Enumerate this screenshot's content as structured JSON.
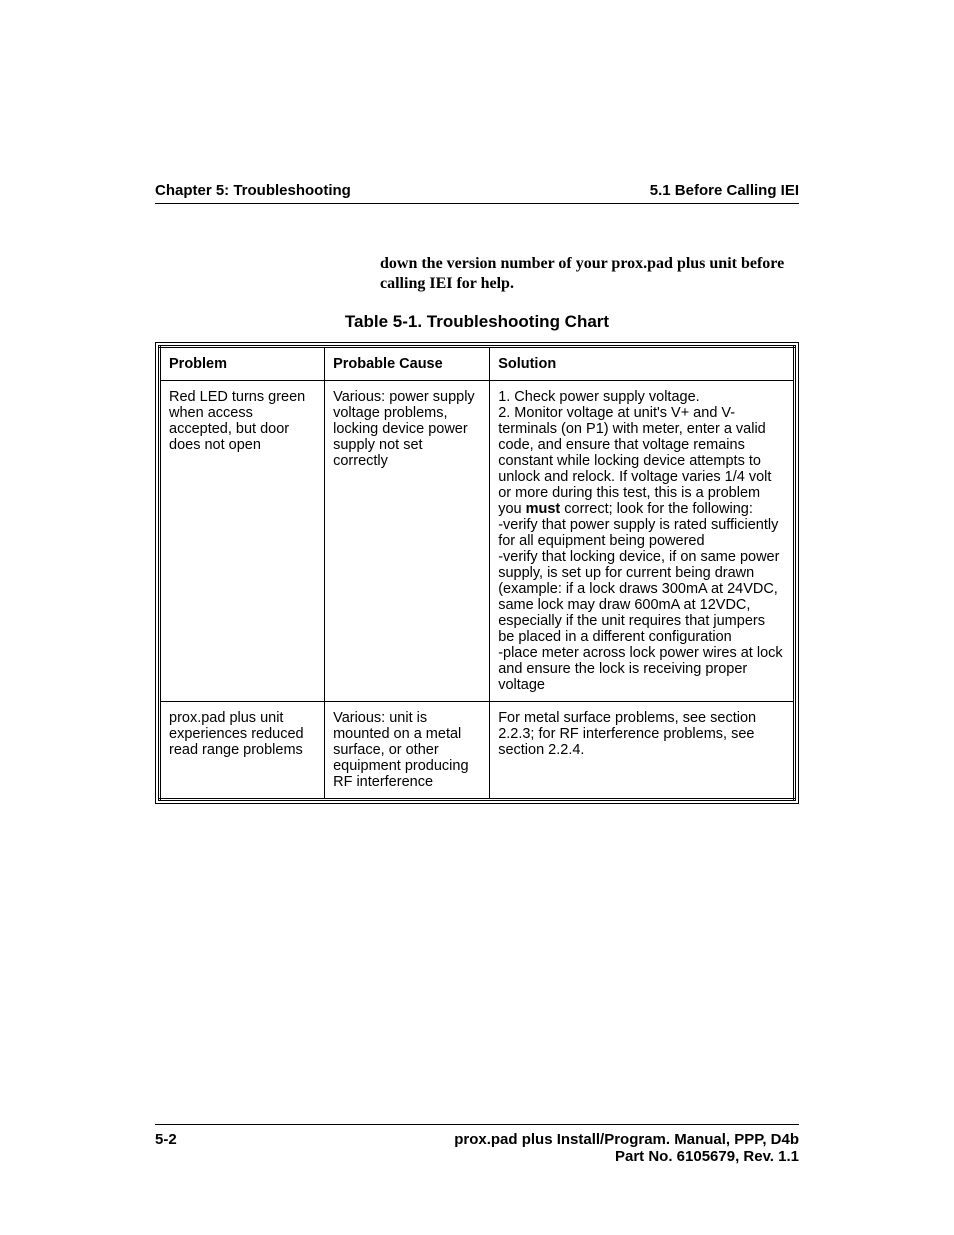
{
  "header": {
    "left": "Chapter 5: Troubleshooting",
    "right": "5.1 Before Calling IEI"
  },
  "intro": "down the version number of your prox.pad plus unit before calling IEI for help.",
  "tableCaption": "Table 5-1. Troubleshooting Chart",
  "columns": {
    "problem": "Problem",
    "cause": "Probable Cause",
    "solution": "Solution"
  },
  "rows": [
    {
      "problem": "Red LED turns green when access accepted, but door does not open",
      "cause": "Various: power supply voltage problems, locking device power supply not set correctly",
      "solution_pre": "1. Check power supply voltage.\n2. Monitor voltage at unit's V+ and V- terminals (on P1) with meter, enter a valid code, and ensure that voltage remains constant while locking device attempts to unlock and relock. If voltage varies 1/4 volt or more during this test, this is a problem you ",
      "solution_bold": "must",
      "solution_post": " correct; look for the following:\n-verify that power supply is rated sufficiently for all equipment being powered\n-verify that locking device, if on same power supply, is set up for current being drawn (example: if a lock draws 300mA at 24VDC, same lock may draw 600mA at 12VDC, especially if the unit requires that jumpers be placed in a different configuration\n-place meter across lock power wires at lock and ensure the lock is receiving proper voltage"
    },
    {
      "problem": "prox.pad plus unit experiences reduced read range problems",
      "cause": "Various: unit is mounted on a metal surface, or other equipment producing RF interference",
      "solution_pre": "For metal surface problems, see section 2.2.3; for RF interference problems, see section 2.2.4.",
      "solution_bold": "",
      "solution_post": ""
    }
  ],
  "footer": {
    "pageNum": "5-2",
    "line1": "prox.pad plus Install/Program. Manual, PPP, D4b",
    "line2": "Part No. 6105679, Rev. 1.1"
  }
}
